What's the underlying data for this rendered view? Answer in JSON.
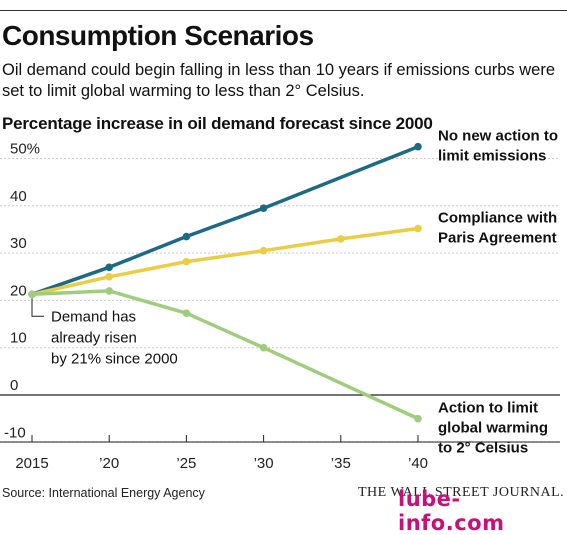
{
  "header": {
    "title": "Consumption Scenarios",
    "subtitle": "Oil demand could begin falling in less than 10 years if emissions curbs were set to limit global warming to less than 2° Celsius.",
    "chart_heading": "Percentage increase in oil demand forecast since 2000"
  },
  "footer": {
    "source": "Source: International Energy Agency",
    "publisher": "THE WALL STREET JOURNAL.",
    "watermark": "lube-info.com"
  },
  "chart_data": {
    "type": "line",
    "title": "Percentage increase in oil demand forecast since 2000",
    "x": [
      2015,
      2020,
      2025,
      2030,
      2035,
      2040
    ],
    "x_tick_labels": [
      "2015",
      "’20",
      "’25",
      "’30",
      "’35",
      "’40"
    ],
    "y_tick_values": [
      50,
      40,
      30,
      20,
      10,
      0,
      -10
    ],
    "y_tick_labels": [
      "50%",
      "40",
      "30",
      "20",
      "10",
      "0",
      "-10"
    ],
    "ylim": [
      -13,
      52
    ],
    "xlim": [
      2015,
      2040
    ],
    "grid": true,
    "series": [
      {
        "name_lines": [
          "No new action to",
          "limit emissions"
        ],
        "color": "#1b6a86",
        "x": [
          2015,
          2020,
          2025,
          2030,
          2040
        ],
        "values": [
          21.3,
          27.0,
          33.5,
          39.5,
          52.5
        ]
      },
      {
        "name_lines": [
          "Compliance with",
          "Paris Agreement"
        ],
        "color": "#eacd43",
        "x": [
          2015,
          2020,
          2025,
          2030,
          2035,
          2040
        ],
        "values": [
          21.3,
          25.0,
          28.2,
          30.5,
          33.0,
          35.2
        ]
      },
      {
        "name_lines": [
          "Action to limit",
          "global warming",
          "to 2° Celsius"
        ],
        "color": "#9fcc7d",
        "x": [
          2015,
          2020,
          2025,
          2030,
          2040
        ],
        "values": [
          21.3,
          22.0,
          17.3,
          10.0,
          -5.0
        ]
      }
    ],
    "annotation": {
      "text_lines": [
        "Demand has",
        "already risen",
        "by 21% since 2000"
      ]
    }
  }
}
